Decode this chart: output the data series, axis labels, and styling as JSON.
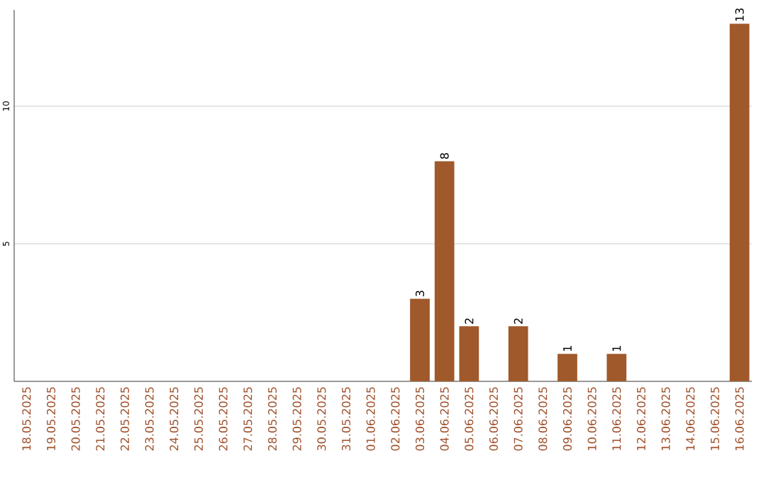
{
  "chart_data": {
    "type": "bar",
    "categories": [
      "18.05.2025",
      "19.05.2025",
      "20.05.2025",
      "21.05.2025",
      "22.05.2025",
      "23.05.2025",
      "24.05.2025",
      "25.05.2025",
      "26.05.2025",
      "27.05.2025",
      "28.05.2025",
      "29.05.2025",
      "30.05.2025",
      "31.05.2025",
      "01.06.2025",
      "02.06.2025",
      "03.06.2025",
      "04.06.2025",
      "05.06.2025",
      "06.06.2025",
      "07.06.2025",
      "08.06.2025",
      "09.06.2025",
      "10.06.2025",
      "11.06.2025",
      "12.06.2025",
      "13.06.2025",
      "14.06.2025",
      "15.06.2025",
      "16.06.2025"
    ],
    "values": [
      0,
      0,
      0,
      0,
      0,
      0,
      0,
      0,
      0,
      0,
      0,
      0,
      0,
      0,
      0,
      0,
      3,
      8,
      2,
      0,
      2,
      0,
      1,
      0,
      1,
      0,
      0,
      0,
      0,
      13
    ],
    "value_labels": [
      null,
      null,
      null,
      null,
      null,
      null,
      null,
      null,
      null,
      null,
      null,
      null,
      null,
      null,
      null,
      null,
      "3",
      "8",
      "2",
      null,
      "2",
      null,
      "1",
      null,
      "1",
      null,
      null,
      null,
      null,
      "13"
    ],
    "color": "#a0592b",
    "ylim": [
      0,
      13.5
    ],
    "yticks": [
      5,
      10
    ],
    "grid": "y"
  }
}
